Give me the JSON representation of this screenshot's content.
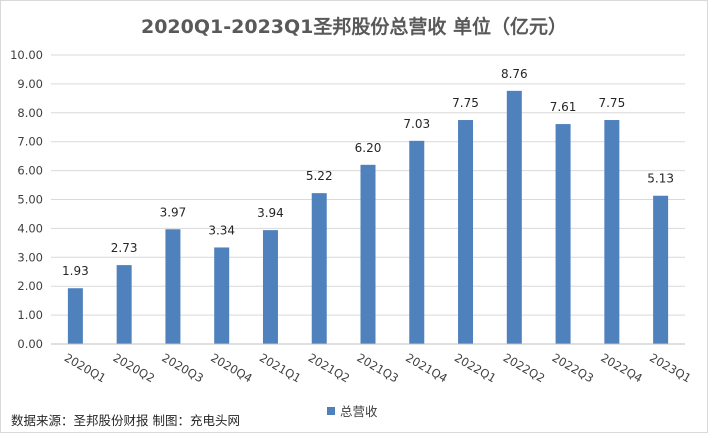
{
  "chart_data": {
    "type": "bar",
    "title": "2020Q1-2023Q1圣邦股份总营收 单位（亿元）",
    "categories": [
      "2020Q1",
      "2020Q2",
      "2020Q3",
      "2020Q4",
      "2021Q1",
      "2021Q2",
      "2021Q3",
      "2021Q4",
      "2022Q1",
      "2022Q2",
      "2022Q3",
      "2022Q4",
      "2023Q1"
    ],
    "series": [
      {
        "name": "总营收",
        "values": [
          1.93,
          2.73,
          3.97,
          3.34,
          3.94,
          5.22,
          6.2,
          7.03,
          7.75,
          8.76,
          7.61,
          7.75,
          5.13
        ]
      }
    ],
    "data_labels": [
      "1.93",
      "2.73",
      "3.97",
      "3.34",
      "3.94",
      "5.22",
      "6.20",
      "7.03",
      "7.75",
      "8.76",
      "7.61",
      "7.75",
      "5.13"
    ],
    "ylim": [
      0,
      10
    ],
    "yticks": [
      "0.00",
      "1.00",
      "2.00",
      "3.00",
      "4.00",
      "5.00",
      "6.00",
      "7.00",
      "8.00",
      "9.00",
      "10.00"
    ],
    "xlabel": "",
    "ylabel": "",
    "grid": true,
    "legend": "bottom",
    "colors": {
      "bar": "#4f81bd",
      "grid": "#d9d9d9",
      "axis": "#bfbfbf"
    }
  },
  "source_note": "数据来源：圣邦股份财报 制图：充电头网"
}
